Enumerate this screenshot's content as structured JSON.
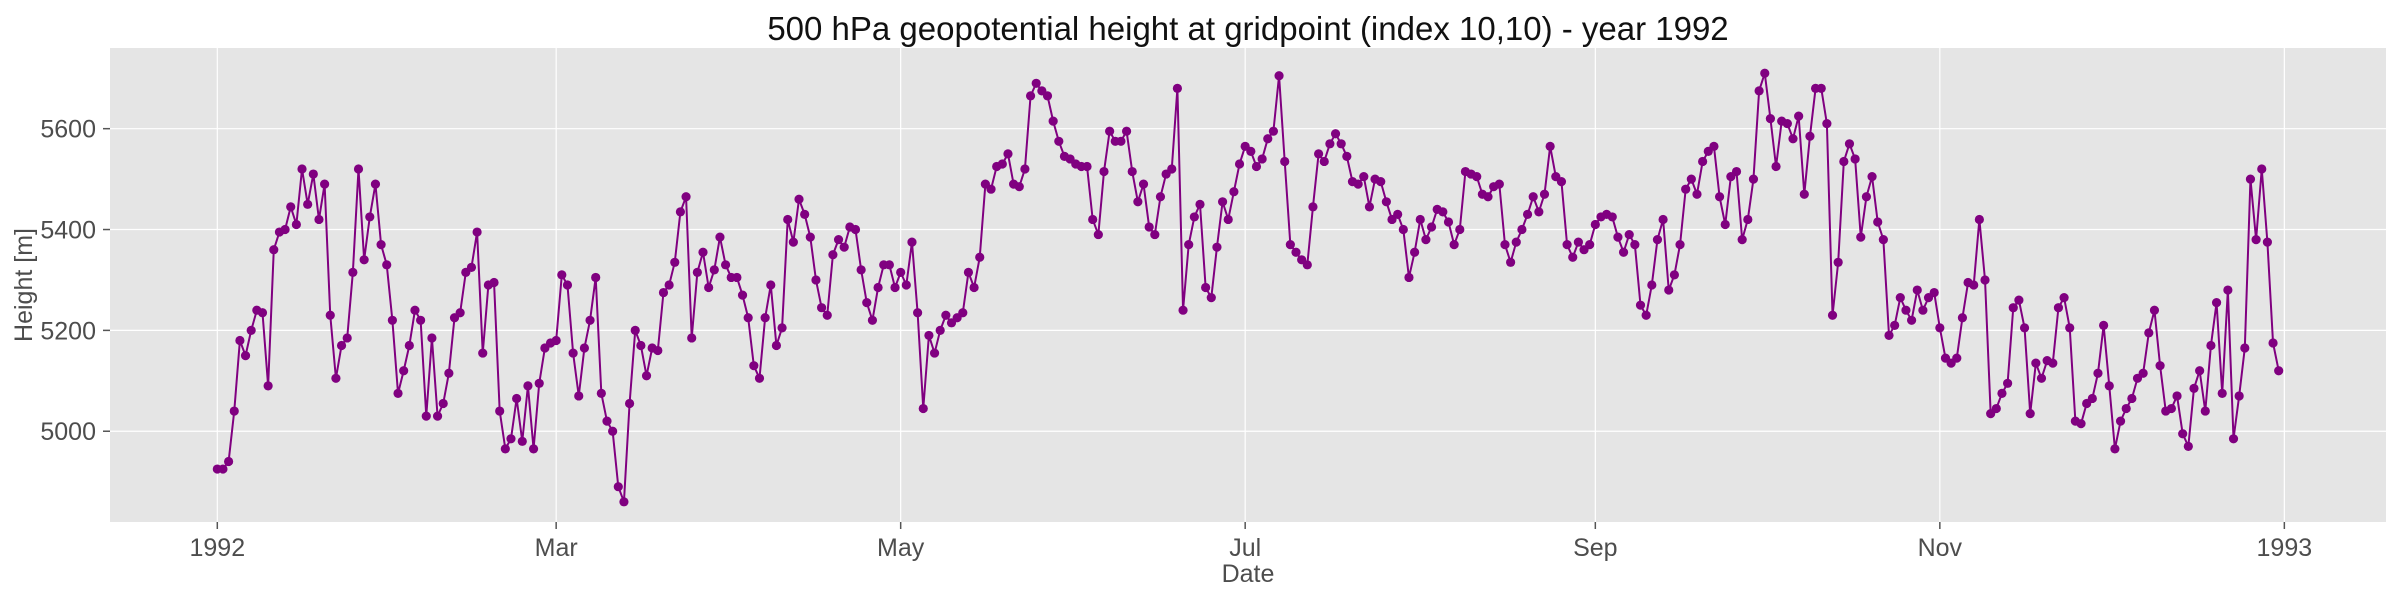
{
  "chart_data": {
    "type": "line",
    "title": "500 hPa geopotential height at gridpoint (index 10,10) - year 1992",
    "xlabel": "Date",
    "ylabel": "Height [m]",
    "x_tick_labels": [
      "1992",
      "Mar",
      "May",
      "Jul",
      "Sep",
      "Nov",
      "1993"
    ],
    "x_tick_dates": [
      "1992-01-01",
      "1992-03-01",
      "1992-05-01",
      "1992-07-01",
      "1992-09-01",
      "1992-11-01",
      "1993-01-01"
    ],
    "y_ticks": [
      5000,
      5200,
      5400,
      5600
    ],
    "xlim": [
      "1991-12-13",
      "1993-01-19"
    ],
    "ylim": [
      4820,
      5760
    ],
    "grid": true,
    "colors": {
      "series": "#800080",
      "plot_background": "#e5e5e5",
      "grid": "#ffffff"
    },
    "series": [
      {
        "x_start": "1992-01-01",
        "x_step_days": 1,
        "values": [
          4925,
          4925,
          4940,
          5040,
          5180,
          5150,
          5200,
          5240,
          5235,
          5090,
          5360,
          5395,
          5400,
          5445,
          5410,
          5520,
          5450,
          5510,
          5420,
          5490,
          5230,
          5105,
          5170,
          5185,
          5315,
          5520,
          5340,
          5425,
          5490,
          5370,
          5330,
          5220,
          5075,
          5120,
          5170,
          5240,
          5220,
          5030,
          5185,
          5030,
          5055,
          5115,
          5225,
          5235,
          5315,
          5325,
          5395,
          5155,
          5290,
          5295,
          5040,
          4965,
          4985,
          5065,
          4980,
          5090,
          4965,
          5095,
          5165,
          5175,
          5180,
          5310,
          5290,
          5155,
          5070,
          5165,
          5220,
          5305,
          5075,
          5020,
          5000,
          4890,
          4860,
          5055,
          5200,
          5170,
          5110,
          5165,
          5160,
          5275,
          5290,
          5335,
          5435,
          5465,
          5185,
          5315,
          5355,
          5285,
          5320,
          5385,
          5330,
          5305,
          5305,
          5270,
          5225,
          5130,
          5105,
          5225,
          5290,
          5170,
          5205,
          5420,
          5375,
          5460,
          5430,
          5385,
          5300,
          5245,
          5230,
          5350,
          5380,
          5365,
          5405,
          5400,
          5320,
          5255,
          5220,
          5285,
          5330,
          5330,
          5285,
          5315,
          5290,
          5375,
          5235,
          5045,
          5190,
          5155,
          5200,
          5230,
          5215,
          5225,
          5235,
          5315,
          5285,
          5345,
          5490,
          5480,
          5525,
          5530,
          5550,
          5490,
          5485,
          5520,
          5665,
          5690,
          5675,
          5665,
          5615,
          5575,
          5545,
          5540,
          5530,
          5525,
          5525,
          5420,
          5390,
          5515,
          5595,
          5575,
          5575,
          5595,
          5515,
          5455,
          5490,
          5405,
          5390,
          5465,
          5510,
          5520,
          5680,
          5240,
          5370,
          5425,
          5450,
          5285,
          5265,
          5365,
          5455,
          5420,
          5475,
          5530,
          5565,
          5555,
          5525,
          5540,
          5580,
          5595,
          5705,
          5535,
          5370,
          5355,
          5340,
          5330,
          5445,
          5550,
          5535,
          5570,
          5590,
          5570,
          5545,
          5495,
          5490,
          5505,
          5445,
          5500,
          5495,
          5455,
          5420,
          5430,
          5400,
          5305,
          5355,
          5420,
          5380,
          5405,
          5440,
          5435,
          5415,
          5370,
          5400,
          5515,
          5510,
          5505,
          5470,
          5465,
          5485,
          5490,
          5370,
          5335,
          5375,
          5400,
          5430,
          5465,
          5435,
          5470,
          5565,
          5505,
          5495,
          5370,
          5345,
          5375,
          5360,
          5370,
          5410,
          5425,
          5430,
          5425,
          5385,
          5355,
          5390,
          5370,
          5250,
          5230,
          5290,
          5380,
          5420,
          5280,
          5310,
          5370,
          5480,
          5500,
          5470,
          5535,
          5555,
          5565,
          5465,
          5410,
          5505,
          5515,
          5380,
          5420,
          5500,
          5675,
          5710,
          5620,
          5525,
          5615,
          5610,
          5580,
          5625,
          5470,
          5585,
          5680,
          5680,
          5610,
          5230,
          5335,
          5535,
          5570,
          5540,
          5385,
          5465,
          5505,
          5415,
          5380,
          5190,
          5210,
          5265,
          5240,
          5220,
          5280,
          5240,
          5265,
          5275,
          5205,
          5145,
          5135,
          5145,
          5225,
          5295,
          5290,
          5420,
          5300,
          5035,
          5045,
          5075,
          5095,
          5245,
          5260,
          5205,
          5035,
          5135,
          5105,
          5140,
          5135,
          5245,
          5265,
          5205,
          5020,
          5015,
          5055,
          5065,
          5115,
          5210,
          5090,
          4965,
          5020,
          5045,
          5065,
          5105,
          5115,
          5195,
          5240,
          5130,
          5040,
          5045,
          5070,
          4995,
          4970,
          5085,
          5120,
          5040,
          5170,
          5255,
          5075,
          5280,
          4985,
          5070,
          5165,
          5500,
          5380,
          5520,
          5375,
          5175,
          5120
        ]
      }
    ]
  }
}
